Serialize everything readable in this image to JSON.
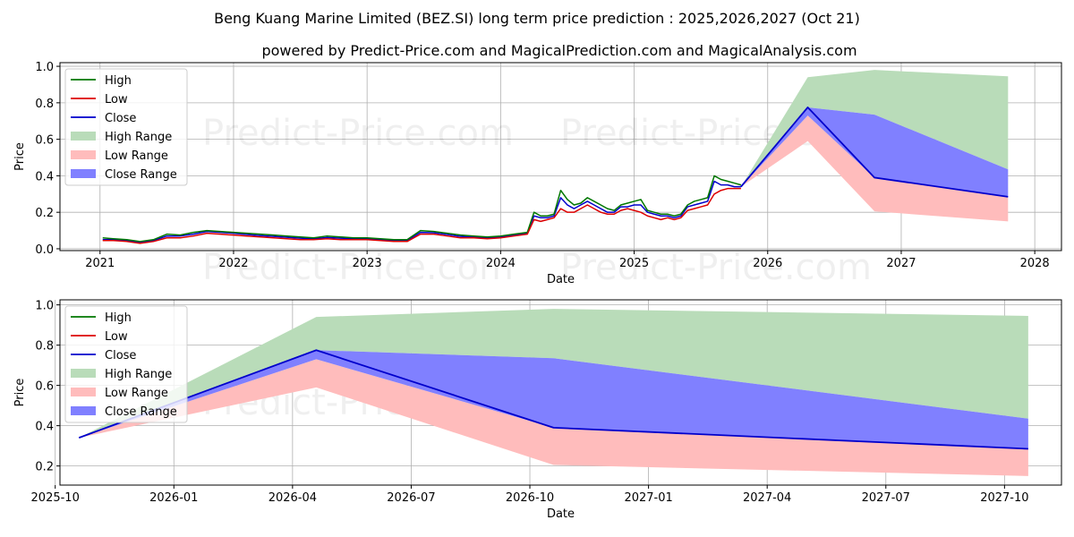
{
  "titles": {
    "line1": "Beng Kuang Marine Limited (BEZ.SI) long term price prediction : 2025,2026,2027 (Oct 21)",
    "line2": "powered by Predict-Price.com and MagicalPrediction.com and MagicalAnalysis.com"
  },
  "watermark": "Predict-Price.com",
  "colors": {
    "high": "#007700",
    "low": "#dd0000",
    "close": "#0000cc",
    "high_range": "#b9dcb9",
    "low_range": "#ffbcbc",
    "close_range": "#8080ff",
    "grid": "#b0b0b0"
  },
  "legend": [
    {
      "label": "High",
      "kind": "line",
      "color_key": "high"
    },
    {
      "label": "Low",
      "kind": "line",
      "color_key": "low"
    },
    {
      "label": "Close",
      "kind": "line",
      "color_key": "close"
    },
    {
      "label": "High Range",
      "kind": "patch",
      "color_key": "high_range"
    },
    {
      "label": "Low Range",
      "kind": "patch",
      "color_key": "low_range"
    },
    {
      "label": "Close Range",
      "kind": "patch",
      "color_key": "close_range"
    }
  ],
  "chart_data": [
    {
      "type": "line",
      "xlabel": "Date",
      "ylabel": "Price",
      "xlim": [
        2020.7,
        2028.2
      ],
      "ylim": [
        -0.01,
        1.02
      ],
      "xticks": [
        {
          "v": 2021,
          "label": "2021"
        },
        {
          "v": 2022,
          "label": "2022"
        },
        {
          "v": 2023,
          "label": "2023"
        },
        {
          "v": 2024,
          "label": "2024"
        },
        {
          "v": 2025,
          "label": "2025"
        },
        {
          "v": 2026,
          "label": "2026"
        },
        {
          "v": 2027,
          "label": "2027"
        },
        {
          "v": 2028,
          "label": "2028"
        }
      ],
      "yticks": [
        {
          "v": 0.0,
          "label": "0.0"
        },
        {
          "v": 0.2,
          "label": "0.2"
        },
        {
          "v": 0.4,
          "label": "0.4"
        },
        {
          "v": 0.6,
          "label": "0.6"
        },
        {
          "v": 0.8,
          "label": "0.8"
        },
        {
          "v": 1.0,
          "label": "1.0"
        }
      ],
      "history": {
        "x": [
          2021.02,
          2021.1,
          2021.2,
          2021.3,
          2021.4,
          2021.5,
          2021.6,
          2021.7,
          2021.8,
          2021.9,
          2022.0,
          2022.1,
          2022.2,
          2022.3,
          2022.4,
          2022.5,
          2022.6,
          2022.7,
          2022.8,
          2022.9,
          2023.0,
          2023.1,
          2023.2,
          2023.3,
          2023.4,
          2023.5,
          2023.6,
          2023.7,
          2023.8,
          2023.9,
          2024.0,
          2024.1,
          2024.2,
          2024.25,
          2024.3,
          2024.35,
          2024.4,
          2024.45,
          2024.5,
          2024.55,
          2024.6,
          2024.65,
          2024.7,
          2024.75,
          2024.8,
          2024.85,
          2024.9,
          2024.95,
          2025.0,
          2025.05,
          2025.1,
          2025.15,
          2025.2,
          2025.25,
          2025.3,
          2025.35,
          2025.4,
          2025.45,
          2025.5,
          2025.55,
          2025.6,
          2025.65,
          2025.7,
          2025.75,
          2025.8
        ],
        "high": [
          0.06,
          0.055,
          0.05,
          0.04,
          0.05,
          0.08,
          0.075,
          0.09,
          0.1,
          0.095,
          0.09,
          0.085,
          0.08,
          0.075,
          0.07,
          0.065,
          0.06,
          0.07,
          0.065,
          0.06,
          0.06,
          0.055,
          0.05,
          0.05,
          0.1,
          0.095,
          0.085,
          0.075,
          0.07,
          0.065,
          0.07,
          0.08,
          0.09,
          0.2,
          0.18,
          0.18,
          0.19,
          0.32,
          0.27,
          0.24,
          0.25,
          0.28,
          0.26,
          0.24,
          0.22,
          0.21,
          0.24,
          0.25,
          0.26,
          0.27,
          0.21,
          0.2,
          0.19,
          0.19,
          0.18,
          0.19,
          0.24,
          0.26,
          0.27,
          0.28,
          0.4,
          0.38,
          0.37,
          0.36,
          0.35
        ],
        "low": [
          0.045,
          0.045,
          0.04,
          0.03,
          0.04,
          0.06,
          0.06,
          0.07,
          0.085,
          0.08,
          0.075,
          0.07,
          0.065,
          0.06,
          0.055,
          0.05,
          0.05,
          0.055,
          0.05,
          0.05,
          0.05,
          0.045,
          0.04,
          0.04,
          0.08,
          0.08,
          0.07,
          0.06,
          0.06,
          0.055,
          0.06,
          0.07,
          0.08,
          0.16,
          0.15,
          0.16,
          0.17,
          0.22,
          0.2,
          0.2,
          0.22,
          0.24,
          0.22,
          0.2,
          0.19,
          0.19,
          0.21,
          0.22,
          0.21,
          0.2,
          0.18,
          0.17,
          0.16,
          0.17,
          0.16,
          0.17,
          0.21,
          0.22,
          0.23,
          0.24,
          0.3,
          0.32,
          0.33,
          0.33,
          0.33
        ],
        "close": [
          0.05,
          0.05,
          0.045,
          0.035,
          0.045,
          0.07,
          0.07,
          0.08,
          0.095,
          0.09,
          0.085,
          0.078,
          0.072,
          0.068,
          0.063,
          0.058,
          0.055,
          0.062,
          0.058,
          0.055,
          0.055,
          0.05,
          0.045,
          0.045,
          0.09,
          0.088,
          0.078,
          0.068,
          0.065,
          0.06,
          0.065,
          0.075,
          0.085,
          0.18,
          0.17,
          0.17,
          0.18,
          0.28,
          0.24,
          0.22,
          0.24,
          0.26,
          0.24,
          0.22,
          0.2,
          0.2,
          0.23,
          0.23,
          0.24,
          0.24,
          0.2,
          0.19,
          0.18,
          0.18,
          0.17,
          0.18,
          0.23,
          0.24,
          0.25,
          0.26,
          0.37,
          0.35,
          0.35,
          0.34,
          0.34
        ]
      },
      "forecast": {
        "x": [
          2025.8,
          2026.3,
          2026.8,
          2027.8
        ],
        "high_range_upper": [
          0.34,
          0.94,
          0.98,
          0.945
        ],
        "low_range_lower": [
          0.34,
          0.59,
          0.205,
          0.15
        ],
        "close_range_upper": [
          0.34,
          0.775,
          0.735,
          0.435
        ],
        "close_range_lower": [
          0.34,
          0.73,
          0.39,
          0.285
        ],
        "close": [
          0.34,
          0.775,
          0.39,
          0.285
        ]
      }
    },
    {
      "type": "line",
      "xlabel": "Date",
      "ylabel": "Price",
      "xlim": [
        2025.76,
        2027.87
      ],
      "ylim": [
        0.105,
        1.025
      ],
      "xticks": [
        {
          "v": 2025.75,
          "label": "2025-10"
        },
        {
          "v": 2026.0,
          "label": "2026-01"
        },
        {
          "v": 2026.25,
          "label": "2026-04"
        },
        {
          "v": 2026.5,
          "label": "2026-07"
        },
        {
          "v": 2026.75,
          "label": "2026-10"
        },
        {
          "v": 2027.0,
          "label": "2027-01"
        },
        {
          "v": 2027.25,
          "label": "2027-04"
        },
        {
          "v": 2027.5,
          "label": "2027-07"
        },
        {
          "v": 2027.75,
          "label": "2027-10"
        }
      ],
      "yticks": [
        {
          "v": 0.2,
          "label": "0.2"
        },
        {
          "v": 0.4,
          "label": "0.4"
        },
        {
          "v": 0.6,
          "label": "0.6"
        },
        {
          "v": 0.8,
          "label": "0.8"
        },
        {
          "v": 1.0,
          "label": "1.0"
        }
      ],
      "forecast": {
        "x": [
          2025.8,
          2026.3,
          2026.8,
          2027.8
        ],
        "high_range_upper": [
          0.34,
          0.94,
          0.98,
          0.945
        ],
        "low_range_lower": [
          0.34,
          0.59,
          0.205,
          0.15
        ],
        "close_range_upper": [
          0.34,
          0.775,
          0.735,
          0.435
        ],
        "close_range_lower": [
          0.34,
          0.73,
          0.39,
          0.285
        ],
        "close": [
          0.34,
          0.775,
          0.39,
          0.285
        ]
      }
    }
  ]
}
